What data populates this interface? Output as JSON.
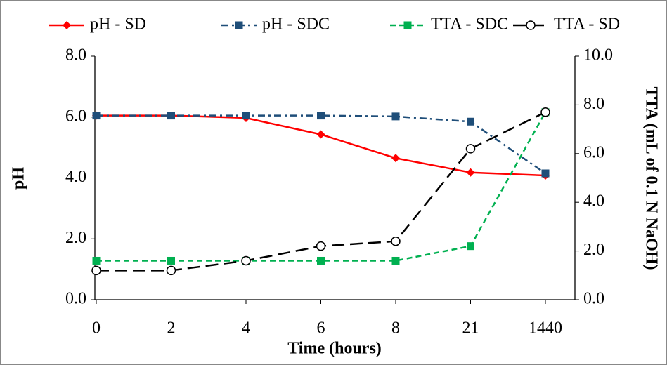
{
  "chart_data": {
    "type": "line",
    "x_label": "Time (hours)",
    "y_label": "pH",
    "y2_label": "TTA (mL of 0.1 N NaOH)",
    "categories": [
      "0",
      "2",
      "4",
      "6",
      "8",
      "21",
      "1440"
    ],
    "ylim": [
      0,
      8
    ],
    "yticks": [
      {
        "value": 0,
        "label": "0.0"
      },
      {
        "value": 2,
        "label": "2.0"
      },
      {
        "value": 4,
        "label": "4.0"
      },
      {
        "value": 6,
        "label": "6.0"
      },
      {
        "value": 8,
        "label": "8.0"
      }
    ],
    "y2lim": [
      0,
      10
    ],
    "y2ticks": [
      {
        "value": 0,
        "label": "0.0"
      },
      {
        "value": 2,
        "label": "2.0"
      },
      {
        "value": 4,
        "label": "4.0"
      },
      {
        "value": 6,
        "label": "6.0"
      },
      {
        "value": 8,
        "label": "8.0"
      },
      {
        "value": 10,
        "label": "10.0"
      }
    ],
    "legend": "top",
    "series": [
      {
        "name": "pH - SD",
        "color": "#ff0000",
        "dash": "solid",
        "marker": "diamond",
        "values": [
          6.05,
          6.05,
          5.97,
          5.43,
          4.65,
          4.18,
          4.08
        ]
      },
      {
        "name": "pH - SDC",
        "color": "#1f4e79",
        "dash": "dashdot",
        "marker": "square",
        "values": [
          6.05,
          6.05,
          6.05,
          6.05,
          6.02,
          5.85,
          4.15
        ]
      },
      {
        "name": "TTA - SDC",
        "color": "#00b050",
        "dash": "dashed",
        "marker": "square",
        "axis": "y2",
        "values": [
          1.6,
          1.6,
          1.6,
          1.6,
          1.6,
          2.2,
          7.7
        ]
      },
      {
        "name": "TTA - SD",
        "color": "#000000",
        "dash": "longdash",
        "marker": "open-circle",
        "axis": "y2",
        "values": [
          1.2,
          1.2,
          1.6,
          2.2,
          2.4,
          6.2,
          7.7
        ]
      }
    ]
  }
}
